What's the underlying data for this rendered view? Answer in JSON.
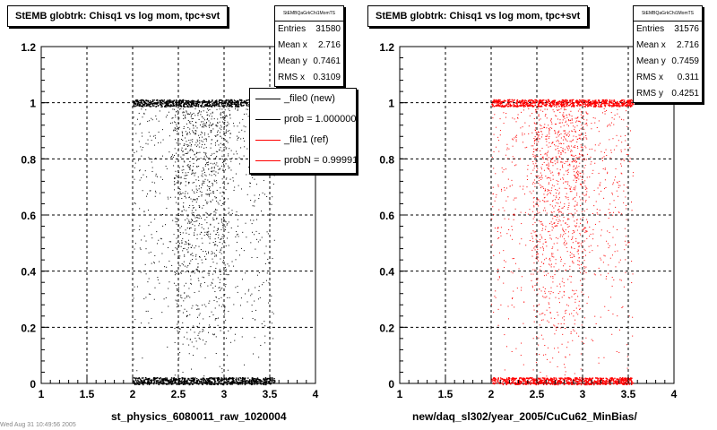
{
  "chart_data": [
    {
      "type": "scatter",
      "title": "StEMB globtrk: Chisq1 vs log mom, tpc+svt",
      "xlabel": "st_physics_6080011_raw_1020004",
      "ylabel": "",
      "xlim": [
        1,
        4
      ],
      "ylim": [
        0,
        1.2
      ],
      "xticks": [
        "1",
        "1.5",
        "2",
        "2.5",
        "3",
        "3.5",
        "4"
      ],
      "yticks": [
        "0",
        "0.2",
        "0.4",
        "0.6",
        "0.8",
        "1",
        "1.2"
      ],
      "grid": true,
      "marker_color": "#000000",
      "x_range_of_points": [
        2.0,
        3.55
      ],
      "dense_bands_y": [
        1.0,
        0.01
      ],
      "stats": {
        "name": "StEMBQaGrkChi1MomTS",
        "rows": [
          {
            "label": "Entries",
            "value": "31580"
          },
          {
            "label": "Mean x",
            "value": "2.716"
          },
          {
            "label": "Mean y",
            "value": "0.7461"
          },
          {
            "label": "RMS x",
            "value": "0.3109"
          }
        ]
      },
      "legend": {
        "placement": "top-right",
        "entries": [
          {
            "text": "_file0 (new)",
            "color": "#000000"
          },
          {
            "text": "prob = 1.000000",
            "color": "#000000"
          },
          {
            "text": "_file1 (ref)",
            "color": "#ff0000"
          },
          {
            "text": "probN = 0.999910",
            "color": "#ff0000"
          }
        ]
      }
    },
    {
      "type": "scatter",
      "title": "StEMB globtrk: Chisq1 vs log mom, tpc+svt",
      "xlabel": "new/daq_sl302/year_2005/CuCu62_MinBias/",
      "ylabel": "",
      "xlim": [
        1,
        4
      ],
      "ylim": [
        0,
        1.2
      ],
      "xticks": [
        "1",
        "1.5",
        "2",
        "2.5",
        "3",
        "3.5",
        "4"
      ],
      "yticks": [
        "0",
        "0.2",
        "0.4",
        "0.6",
        "0.8",
        "1",
        "1.2"
      ],
      "grid": true,
      "marker_color": "#ff0000",
      "x_range_of_points": [
        2.0,
        3.55
      ],
      "dense_bands_y": [
        1.0,
        0.01
      ],
      "stats": {
        "name": "StEMBQaGrkChi1MomTS",
        "rows": [
          {
            "label": "Entries",
            "value": "31576"
          },
          {
            "label": "Mean x",
            "value": "2.716"
          },
          {
            "label": "Mean y",
            "value": "0.7459"
          },
          {
            "label": "RMS x",
            "value": "0.311"
          },
          {
            "label": "RMS y",
            "value": "0.4251"
          }
        ]
      }
    }
  ],
  "footnote": "Wed Aug 31 10:49:56 2005"
}
